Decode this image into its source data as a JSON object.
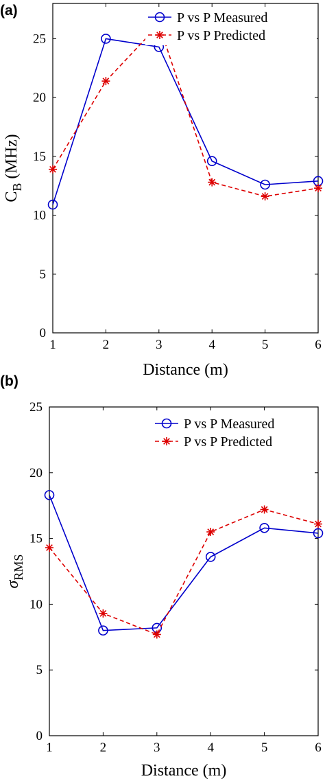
{
  "chart_data": [
    {
      "type": "line",
      "panel_label": "(a)",
      "x": [
        1,
        2,
        3,
        4,
        5,
        6
      ],
      "xlabel": "Distance (m)",
      "ylabel": "C_B (MHz)",
      "ylabel_parts": {
        "main": "C",
        "sub": "B",
        "rest": "(MHz)"
      },
      "xlim": [
        1,
        6
      ],
      "ylim": [
        0,
        28
      ],
      "xticks": [
        1,
        2,
        3,
        4,
        5,
        6
      ],
      "yticks": [
        0,
        5,
        10,
        15,
        20,
        25
      ],
      "grid": false,
      "legend_position": "top-right",
      "series": [
        {
          "name": "P vs P Measured",
          "values": [
            10.9,
            25.0,
            24.3,
            14.6,
            12.6,
            12.9
          ],
          "color": "#0000cc",
          "marker": "circle",
          "line_style": "solid"
        },
        {
          "name": "P vs P Predicted",
          "values": [
            13.9,
            21.4,
            26.2,
            12.8,
            11.6,
            12.3
          ],
          "color": "#dd0000",
          "marker": "asterisk",
          "line_style": "dashed"
        }
      ]
    },
    {
      "type": "line",
      "panel_label": "(b)",
      "x": [
        1,
        2,
        3,
        4,
        5,
        6
      ],
      "xlabel": "Distance (m)",
      "ylabel": "σ_RMS",
      "ylabel_parts": {
        "main": "σ",
        "sub": "RMS",
        "rest": ""
      },
      "xlim": [
        1,
        6
      ],
      "ylim": [
        0,
        25
      ],
      "xticks": [
        1,
        2,
        3,
        4,
        5,
        6
      ],
      "yticks": [
        0,
        5,
        10,
        15,
        20,
        25
      ],
      "grid": false,
      "legend_position": "top-right",
      "series": [
        {
          "name": "P vs P Measured",
          "values": [
            18.3,
            8.0,
            8.2,
            13.6,
            15.8,
            15.4
          ],
          "color": "#0000cc",
          "marker": "circle",
          "line_style": "solid"
        },
        {
          "name": "P vs P Predicted",
          "values": [
            14.3,
            9.3,
            7.7,
            15.5,
            17.2,
            16.1
          ],
          "color": "#dd0000",
          "marker": "asterisk",
          "line_style": "dashed"
        }
      ]
    }
  ]
}
